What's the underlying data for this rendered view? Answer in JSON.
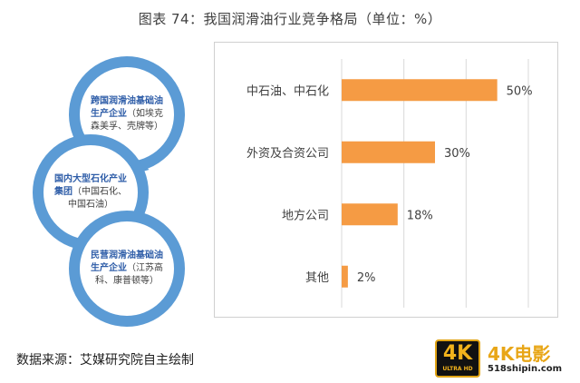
{
  "title": "图表 74：我国润滑油行业竞争格局（单位：%）",
  "diagram": {
    "items": [
      {
        "highlight": "跨国润滑油基础油生产企业",
        "note": "（如埃克森美孚、壳牌等）"
      },
      {
        "highlight": "国内大型石化产业集团",
        "note": "（中国石化、中国石油）"
      },
      {
        "highlight": "民营润滑油基础油生产企业",
        "note": "（江苏高科、康普顿等）"
      }
    ]
  },
  "chart_data": {
    "type": "bar",
    "orientation": "horizontal",
    "categories": [
      "中石油、中石化",
      "外资及合资公司",
      "地方公司",
      "其他"
    ],
    "values": [
      50,
      30,
      18,
      2
    ],
    "value_labels": [
      "50%",
      "30%",
      "18%",
      "2%"
    ],
    "xlim": [
      0,
      60
    ],
    "grid": true,
    "color": "#f59b44"
  },
  "source": "数据来源：艾媒研究院自主绘制",
  "watermark": {
    "badge": "4K",
    "badge_sub": "ULTRA HD",
    "name": "4K电影",
    "url": "518shipin.com"
  }
}
